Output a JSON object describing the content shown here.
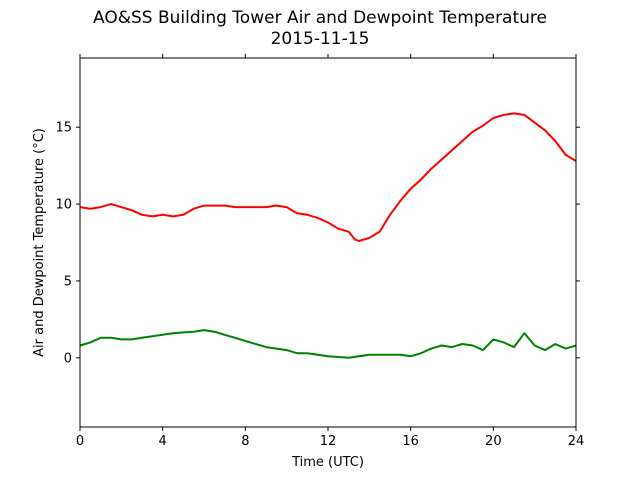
{
  "chart_data": {
    "type": "line",
    "title": "AO&SS Building Tower Air and Dewpoint Temperature",
    "subtitle": "2015-11-15",
    "xlabel": "Time (UTC)",
    "ylabel": "Air and Dewpoint Temperature (°C)",
    "xlim": [
      0,
      24
    ],
    "ylim": [
      -4.5,
      19.5
    ],
    "xticks": [
      0,
      4,
      8,
      12,
      16,
      20,
      24
    ],
    "yticks": [
      0,
      5,
      10,
      15
    ],
    "grid": false,
    "series": [
      {
        "color": "#ff0000",
        "x": [
          0,
          0.5,
          1,
          1.5,
          2,
          2.5,
          3,
          3.5,
          4,
          4.5,
          5,
          5.5,
          6,
          6.5,
          7,
          7.5,
          8,
          8.5,
          9,
          9.5,
          10,
          10.5,
          11,
          11.5,
          12,
          12.5,
          13,
          13.3,
          13.5,
          14,
          14.5,
          15,
          15.5,
          16,
          16.5,
          17,
          17.5,
          18,
          18.5,
          19,
          19.5,
          20,
          20.5,
          21,
          21.5,
          22,
          22.5,
          23,
          23.5,
          24
        ],
        "y": [
          9.8,
          9.7,
          9.8,
          10.0,
          9.8,
          9.6,
          9.3,
          9.2,
          9.3,
          9.2,
          9.3,
          9.7,
          9.9,
          9.9,
          9.9,
          9.8,
          9.8,
          9.8,
          9.8,
          9.9,
          9.8,
          9.4,
          9.3,
          9.1,
          8.8,
          8.4,
          8.2,
          7.7,
          7.6,
          7.8,
          8.2,
          9.3,
          10.2,
          11.0,
          11.6,
          12.3,
          12.9,
          13.5,
          14.1,
          14.7,
          15.1,
          15.6,
          15.8,
          15.9,
          15.8,
          15.3,
          14.8,
          14.1,
          13.2,
          12.8
        ]
      },
      {
        "color": "#008000",
        "x": [
          0,
          0.5,
          1,
          1.5,
          2,
          2.5,
          3,
          3.5,
          4,
          4.5,
          5,
          5.5,
          6,
          6.5,
          7,
          7.5,
          8,
          8.5,
          9,
          9.5,
          10,
          10.5,
          11,
          11.5,
          12,
          12.5,
          13,
          13.5,
          14,
          14.5,
          15,
          15.5,
          16,
          16.5,
          17,
          17.5,
          18,
          18.5,
          19,
          19.5,
          20,
          20.5,
          21,
          21.5,
          22,
          22.5,
          23,
          23.5,
          24
        ],
        "y": [
          0.8,
          1.0,
          1.3,
          1.3,
          1.2,
          1.2,
          1.3,
          1.4,
          1.5,
          1.6,
          1.65,
          1.7,
          1.8,
          1.7,
          1.5,
          1.3,
          1.1,
          0.9,
          0.7,
          0.6,
          0.5,
          0.3,
          0.3,
          0.2,
          0.1,
          0.05,
          0.0,
          0.1,
          0.2,
          0.2,
          0.2,
          0.2,
          0.1,
          0.3,
          0.6,
          0.8,
          0.7,
          0.9,
          0.8,
          0.5,
          1.2,
          1.0,
          0.7,
          1.6,
          0.8,
          0.5,
          0.9,
          0.6,
          0.8
        ]
      }
    ]
  }
}
